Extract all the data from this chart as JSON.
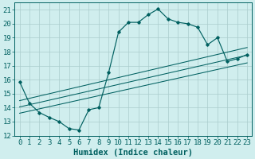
{
  "xlabel": "Humidex (Indice chaleur)",
  "xlim": [
    -0.5,
    23.5
  ],
  "ylim": [
    12,
    21.5
  ],
  "yticks": [
    12,
    13,
    14,
    15,
    16,
    17,
    18,
    19,
    20,
    21
  ],
  "xticks": [
    0,
    1,
    2,
    3,
    4,
    5,
    6,
    7,
    8,
    9,
    10,
    11,
    12,
    13,
    14,
    15,
    16,
    17,
    18,
    19,
    20,
    21,
    22,
    23
  ],
  "main_x": [
    0,
    1,
    2,
    3,
    4,
    5,
    6,
    7,
    8,
    9,
    10,
    11,
    12,
    13,
    14,
    15,
    16,
    17,
    18,
    19,
    20,
    21,
    22,
    23
  ],
  "main_y": [
    15.85,
    14.3,
    13.65,
    13.3,
    13.0,
    12.5,
    12.4,
    13.85,
    14.0,
    16.5,
    19.4,
    20.1,
    20.1,
    20.65,
    21.05,
    20.35,
    20.1,
    20.0,
    19.75,
    18.5,
    19.0,
    17.3,
    17.5,
    17.8
  ],
  "line1_x": [
    0,
    23
  ],
  "line1_y": [
    13.6,
    17.2
  ],
  "line2_x": [
    0,
    23
  ],
  "line2_y": [
    14.05,
    17.75
  ],
  "line3_x": [
    0,
    23
  ],
  "line3_y": [
    14.5,
    18.3
  ],
  "color": "#006060",
  "bg_color": "#d0eeee",
  "grid_color": "#aacccc",
  "tick_fontsize": 6.5,
  "label_fontsize": 7.5
}
